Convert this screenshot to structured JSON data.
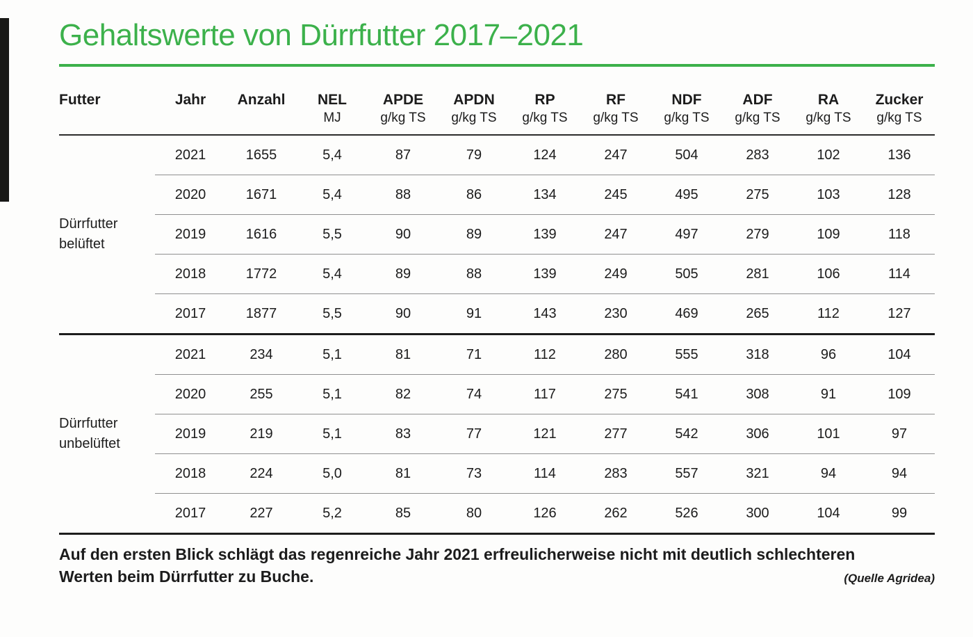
{
  "colors": {
    "title_green": "#3cb14b",
    "text": "#1c1c1c",
    "row_line": "#8f8f8f",
    "strong_line": "#1d1d1d"
  },
  "caption": {
    "text": "Auf den ersten Blick schlägt das regenreiche Jahr 2021 erfreulicherweise nicht mit deutlich schlechteren Werten beim Dürrfutter zu Buche.",
    "source": "(Quelle Agridea)"
  },
  "chart_data": {
    "type": "table",
    "title": "Gehaltswerte von Dürrfutter 2017–2021",
    "columns": [
      {
        "label": "Futter",
        "unit": ""
      },
      {
        "label": "Jahr",
        "unit": ""
      },
      {
        "label": "Anzahl",
        "unit": ""
      },
      {
        "label": "NEL",
        "unit": "MJ"
      },
      {
        "label": "APDE",
        "unit": "g/kg TS"
      },
      {
        "label": "APDN",
        "unit": "g/kg TS"
      },
      {
        "label": "RP",
        "unit": "g/kg TS"
      },
      {
        "label": "RF",
        "unit": "g/kg TS"
      },
      {
        "label": "NDF",
        "unit": "g/kg TS"
      },
      {
        "label": "ADF",
        "unit": "g/kg TS"
      },
      {
        "label": "RA",
        "unit": "g/kg TS"
      },
      {
        "label": "Zucker",
        "unit": "g/kg TS"
      }
    ],
    "groups": [
      {
        "label": "Dürrfutter belüftet",
        "rows": [
          [
            "2021",
            "1655",
            "5,4",
            "87",
            "79",
            "124",
            "247",
            "504",
            "283",
            "102",
            "136"
          ],
          [
            "2020",
            "1671",
            "5,4",
            "88",
            "86",
            "134",
            "245",
            "495",
            "275",
            "103",
            "128"
          ],
          [
            "2019",
            "1616",
            "5,5",
            "90",
            "89",
            "139",
            "247",
            "497",
            "279",
            "109",
            "118"
          ],
          [
            "2018",
            "1772",
            "5,4",
            "89",
            "88",
            "139",
            "249",
            "505",
            "281",
            "106",
            "114"
          ],
          [
            "2017",
            "1877",
            "5,5",
            "90",
            "91",
            "143",
            "230",
            "469",
            "265",
            "112",
            "127"
          ]
        ]
      },
      {
        "label": "Dürrfutter unbelüftet",
        "rows": [
          [
            "2021",
            "234",
            "5,1",
            "81",
            "71",
            "112",
            "280",
            "555",
            "318",
            "96",
            "104"
          ],
          [
            "2020",
            "255",
            "5,1",
            "82",
            "74",
            "117",
            "275",
            "541",
            "308",
            "91",
            "109"
          ],
          [
            "2019",
            "219",
            "5,1",
            "83",
            "77",
            "121",
            "277",
            "542",
            "306",
            "101",
            "97"
          ],
          [
            "2018",
            "224",
            "5,0",
            "81",
            "73",
            "114",
            "283",
            "557",
            "321",
            "94",
            "94"
          ],
          [
            "2017",
            "227",
            "5,2",
            "85",
            "80",
            "126",
            "262",
            "526",
            "300",
            "104",
            "99"
          ]
        ]
      }
    ]
  }
}
